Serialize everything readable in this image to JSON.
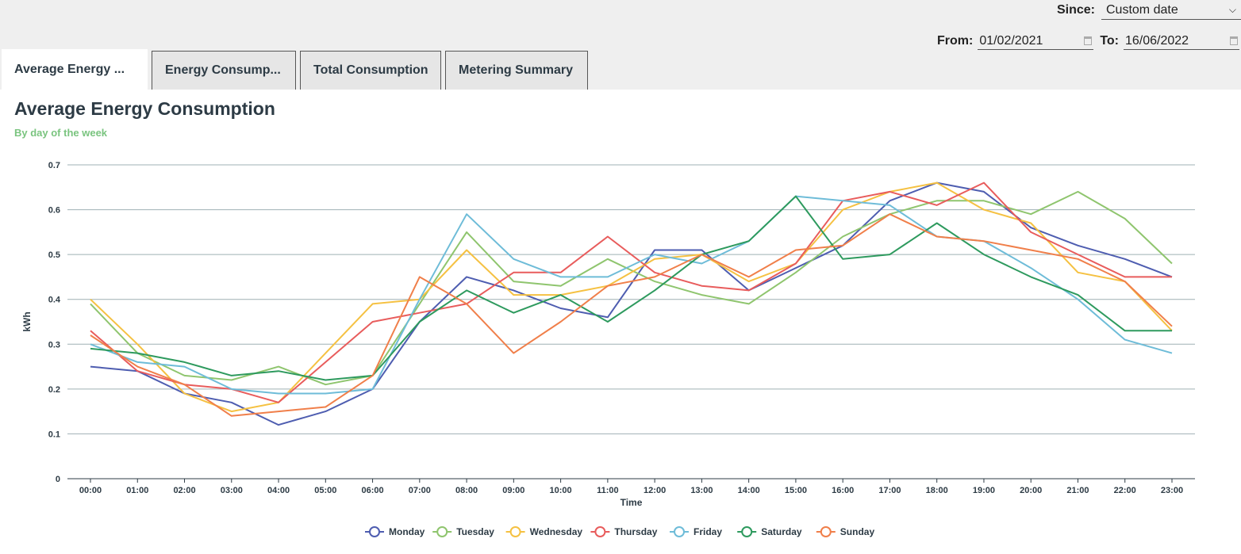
{
  "filters": {
    "since_label": "Since:",
    "since_value": "Custom date",
    "from_label": "From:",
    "from_value": "01/02/2021",
    "to_label": "To:",
    "to_value": "16/06/2022"
  },
  "tabs": [
    {
      "label": "Average Energy ..."
    },
    {
      "label": "Energy Consump..."
    },
    {
      "label": "Total Consumption"
    },
    {
      "label": "Metering Summary"
    }
  ],
  "panel": {
    "title": "Average Energy Consumption",
    "subtitle": "By day of the week"
  },
  "chart_data": {
    "type": "line",
    "x": [
      "00:00",
      "01:00",
      "02:00",
      "03:00",
      "04:00",
      "05:00",
      "06:00",
      "07:00",
      "08:00",
      "09:00",
      "10:00",
      "11:00",
      "12:00",
      "13:00",
      "14:00",
      "15:00",
      "16:00",
      "17:00",
      "18:00",
      "19:00",
      "20:00",
      "21:00",
      "22:00",
      "23:00"
    ],
    "xlabel": "Time",
    "ylabel": "kWh",
    "ylim": [
      0,
      0.7
    ],
    "yticks": [
      "0",
      "0.1",
      "0.2",
      "0.3",
      "0.4",
      "0.5",
      "0.6",
      "0.7"
    ],
    "grid": true,
    "legend_position": "bottom",
    "series": [
      {
        "name": "Monday",
        "color": "#4e5db0",
        "values": [
          0.25,
          0.24,
          0.19,
          0.17,
          0.12,
          0.15,
          0.2,
          0.35,
          0.45,
          0.42,
          0.38,
          0.36,
          0.51,
          0.51,
          0.42,
          0.47,
          0.52,
          0.62,
          0.66,
          0.64,
          0.56,
          0.52,
          0.49,
          0.45
        ]
      },
      {
        "name": "Tuesday",
        "color": "#8fc56e",
        "values": [
          0.39,
          0.28,
          0.23,
          0.22,
          0.25,
          0.21,
          0.23,
          0.39,
          0.55,
          0.44,
          0.43,
          0.49,
          0.44,
          0.41,
          0.39,
          0.46,
          0.54,
          0.59,
          0.62,
          0.62,
          0.59,
          0.64,
          0.58,
          0.48
        ]
      },
      {
        "name": "Wednesday",
        "color": "#f5c142",
        "values": [
          0.4,
          0.3,
          0.19,
          0.15,
          0.17,
          0.28,
          0.39,
          0.4,
          0.51,
          0.41,
          0.41,
          0.43,
          0.49,
          0.5,
          0.44,
          0.48,
          0.6,
          0.64,
          0.66,
          0.6,
          0.57,
          0.46,
          0.44,
          0.33
        ]
      },
      {
        "name": "Thursday",
        "color": "#e85c5c",
        "values": [
          0.33,
          0.24,
          0.21,
          0.2,
          0.17,
          0.26,
          0.35,
          0.37,
          0.39,
          0.46,
          0.46,
          0.54,
          0.46,
          0.43,
          0.42,
          0.48,
          0.62,
          0.64,
          0.61,
          0.66,
          0.55,
          0.5,
          0.45,
          0.45
        ]
      },
      {
        "name": "Friday",
        "color": "#6ebcd8",
        "values": [
          0.3,
          0.26,
          0.25,
          0.2,
          0.19,
          0.19,
          0.2,
          0.4,
          0.59,
          0.49,
          0.45,
          0.45,
          0.5,
          0.48,
          0.53,
          0.63,
          0.62,
          0.61,
          0.54,
          0.53,
          0.47,
          0.4,
          0.31,
          0.28
        ]
      },
      {
        "name": "Saturday",
        "color": "#2e9a5e",
        "values": [
          0.29,
          0.28,
          0.26,
          0.23,
          0.24,
          0.22,
          0.23,
          0.35,
          0.42,
          0.37,
          0.41,
          0.35,
          0.42,
          0.5,
          0.53,
          0.63,
          0.49,
          0.5,
          0.57,
          0.5,
          0.45,
          0.41,
          0.33,
          0.33
        ]
      },
      {
        "name": "Sunday",
        "color": "#f07f4a",
        "values": [
          0.32,
          0.25,
          0.21,
          0.14,
          0.15,
          0.16,
          0.23,
          0.45,
          0.39,
          0.28,
          0.35,
          0.43,
          0.45,
          0.5,
          0.45,
          0.51,
          0.52,
          0.59,
          0.54,
          0.53,
          0.51,
          0.49,
          0.44,
          0.34
        ]
      }
    ]
  }
}
